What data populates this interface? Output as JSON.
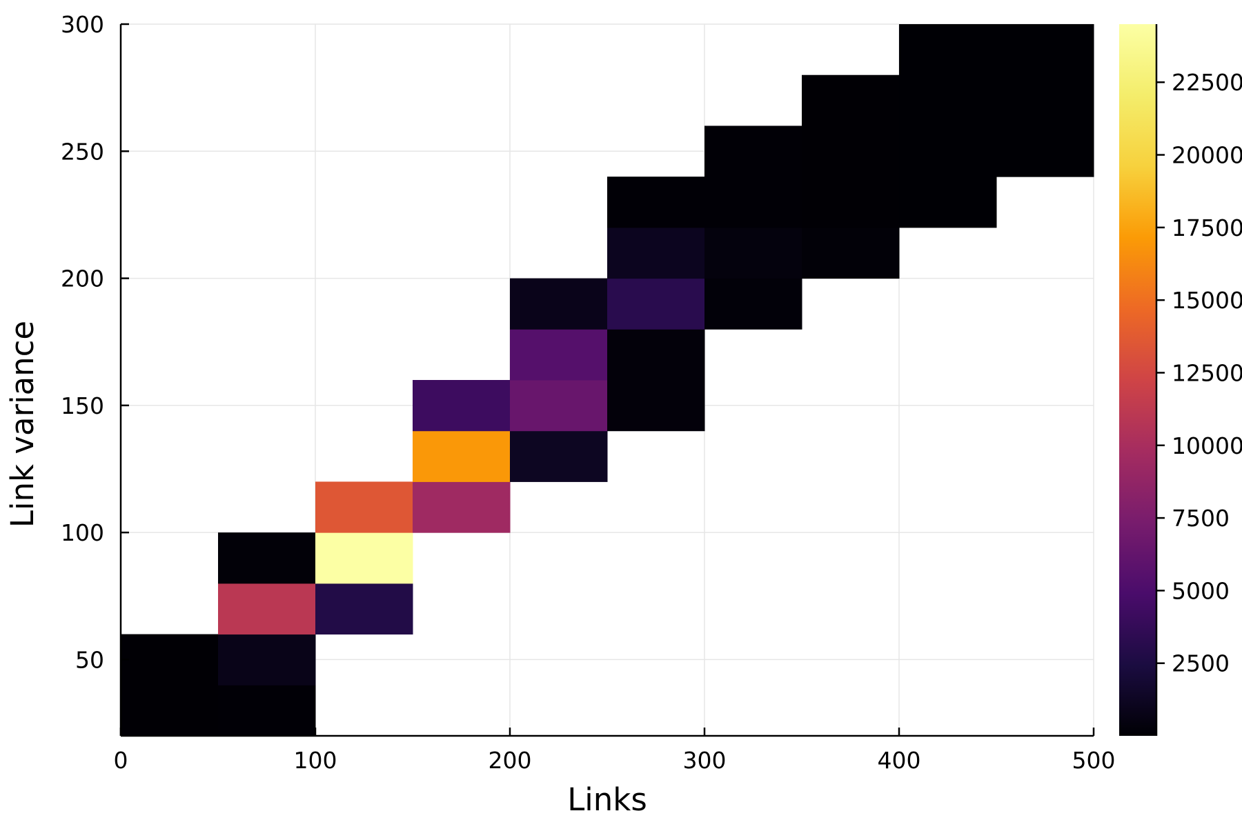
{
  "chart_data": {
    "type": "heatmap",
    "xlabel": "Links",
    "ylabel": "Link variance",
    "xlim": [
      0,
      500
    ],
    "ylim": [
      20,
      300
    ],
    "xticks": [
      0,
      100,
      200,
      300,
      400,
      500
    ],
    "xtick_labels": [
      "0",
      "100",
      "200",
      "300",
      "400",
      "500"
    ],
    "yticks": [
      50,
      100,
      150,
      200,
      250,
      300
    ],
    "ytick_labels": [
      "50",
      "100",
      "150",
      "200",
      "250",
      "300"
    ],
    "grid": true,
    "colormap": "inferno",
    "colorbar": {
      "range": [
        0,
        24500
      ],
      "ticks": [
        2500,
        5000,
        7500,
        10000,
        12500,
        15000,
        17500,
        20000,
        22500
      ],
      "tick_labels": [
        "2500",
        "5000",
        "7500",
        "10000",
        "12500",
        "15000",
        "17500",
        "20000",
        "22500"
      ]
    },
    "bins": [
      {
        "x": [
          0,
          50
        ],
        "y": [
          20,
          60
        ],
        "value": 60
      },
      {
        "x": [
          50,
          100
        ],
        "y": [
          20,
          40
        ],
        "value": 80
      },
      {
        "x": [
          50,
          100
        ],
        "y": [
          40,
          60
        ],
        "value": 800
      },
      {
        "x": [
          50,
          100
        ],
        "y": [
          60,
          80
        ],
        "value": 11000
      },
      {
        "x": [
          50,
          100
        ],
        "y": [
          80,
          100
        ],
        "value": 150
      },
      {
        "x": [
          100,
          150
        ],
        "y": [
          60,
          80
        ],
        "value": 2800
      },
      {
        "x": [
          100,
          150
        ],
        "y": [
          80,
          100
        ],
        "value": 24500
      },
      {
        "x": [
          100,
          150
        ],
        "y": [
          100,
          120
        ],
        "value": 13500
      },
      {
        "x": [
          150,
          200
        ],
        "y": [
          100,
          120
        ],
        "value": 9500
      },
      {
        "x": [
          150,
          200
        ],
        "y": [
          120,
          140
        ],
        "value": 17000
      },
      {
        "x": [
          150,
          200
        ],
        "y": [
          140,
          160
        ],
        "value": 4200
      },
      {
        "x": [
          200,
          250
        ],
        "y": [
          120,
          140
        ],
        "value": 1200
      },
      {
        "x": [
          200,
          250
        ],
        "y": [
          140,
          160
        ],
        "value": 6500
      },
      {
        "x": [
          200,
          250
        ],
        "y": [
          160,
          180
        ],
        "value": 5500
      },
      {
        "x": [
          200,
          250
        ],
        "y": [
          180,
          200
        ],
        "value": 900
      },
      {
        "x": [
          250,
          300
        ],
        "y": [
          140,
          180
        ],
        "value": 250
      },
      {
        "x": [
          250,
          300
        ],
        "y": [
          180,
          200
        ],
        "value": 3200
      },
      {
        "x": [
          250,
          300
        ],
        "y": [
          200,
          220
        ],
        "value": 1100
      },
      {
        "x": [
          250,
          300
        ],
        "y": [
          220,
          240
        ],
        "value": 100
      },
      {
        "x": [
          300,
          350
        ],
        "y": [
          180,
          200
        ],
        "value": 200
      },
      {
        "x": [
          300,
          350
        ],
        "y": [
          200,
          220
        ],
        "value": 350
      },
      {
        "x": [
          300,
          350
        ],
        "y": [
          220,
          260
        ],
        "value": 80
      },
      {
        "x": [
          350,
          400
        ],
        "y": [
          200,
          220
        ],
        "value": 150
      },
      {
        "x": [
          350,
          400
        ],
        "y": [
          220,
          280
        ],
        "value": 60
      },
      {
        "x": [
          400,
          450
        ],
        "y": [
          220,
          300
        ],
        "value": 40
      },
      {
        "x": [
          450,
          500
        ],
        "y": [
          240,
          300
        ],
        "value": 30
      }
    ]
  }
}
